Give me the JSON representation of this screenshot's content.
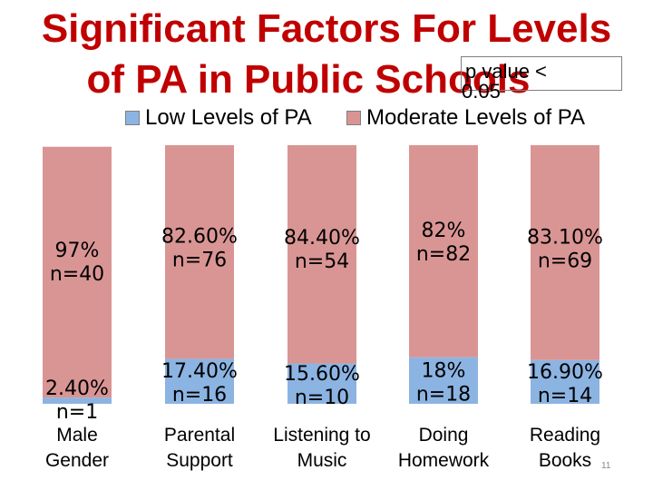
{
  "title": {
    "line1": "Significant Factors For Levels",
    "line2": "of PA in Public Schools"
  },
  "note": {
    "line1": "p value <",
    "line2": "0.05"
  },
  "page_number": "11",
  "colors": {
    "low": "#8cb4e2",
    "moderate": "#d99594",
    "title": "#c00000"
  },
  "chart_data": {
    "type": "bar",
    "stacked": true,
    "categories": [
      [
        "Male",
        "Gender"
      ],
      [
        "Parental",
        "Support"
      ],
      [
        "Listening to",
        "Music"
      ],
      [
        "Doing",
        "Homework"
      ],
      [
        "Reading",
        "Books"
      ]
    ],
    "series": [
      {
        "name": "Low Levels of PA",
        "values": [
          2.4,
          17.4,
          15.6,
          18,
          16.9
        ],
        "labels": [
          [
            "2.40%",
            "n=1"
          ],
          [
            "17.40%",
            "n=16"
          ],
          [
            "15.60%",
            "n=10"
          ],
          [
            "18%",
            "n=18"
          ],
          [
            "16.90%",
            "n=14"
          ]
        ]
      },
      {
        "name": "Moderate Levels of PA",
        "values": [
          97,
          82.6,
          84.4,
          82,
          83.1
        ],
        "labels": [
          [
            "97%",
            "n=40"
          ],
          [
            "82.60%",
            "n=76"
          ],
          [
            "84.40%",
            "n=54"
          ],
          [
            "82%",
            "n=82"
          ],
          [
            "83.10%",
            "n=69"
          ]
        ]
      }
    ],
    "ylim": [
      0,
      100
    ],
    "legend_position": "top",
    "grid": false
  }
}
